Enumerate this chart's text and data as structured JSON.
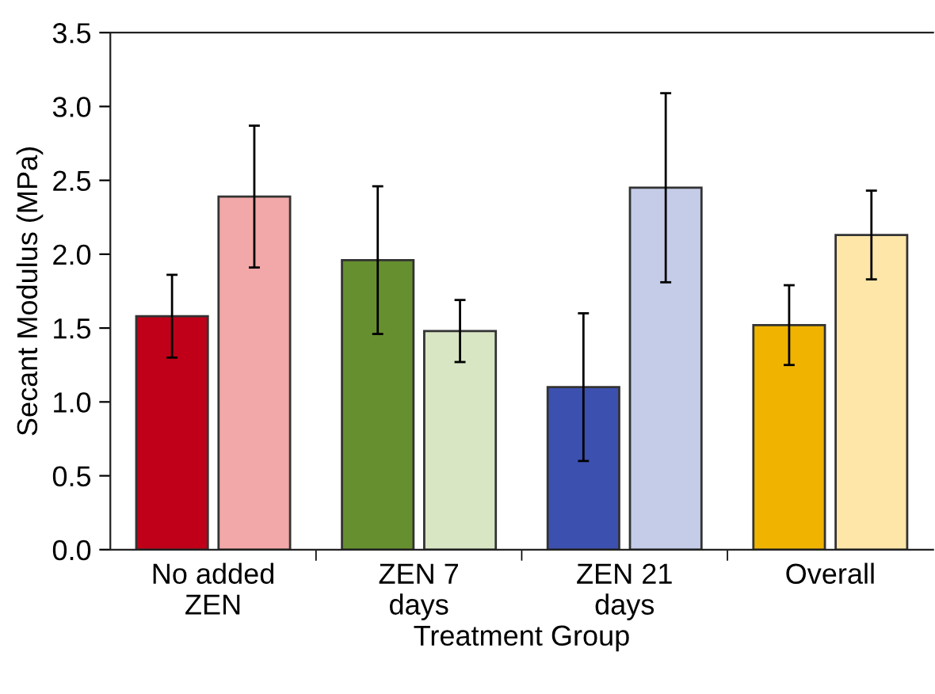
{
  "chart_data": {
    "type": "bar",
    "xlabel": "Treatment Group",
    "ylabel": "Secant Modulus (MPa)",
    "categories": [
      "No added\nZEN",
      "ZEN 7\ndays",
      "ZEN 21\ndays",
      "Overall"
    ],
    "series": [
      {
        "colors": [
          "#c00018",
          "#66902f",
          "#3c50b0",
          "#f0b400"
        ],
        "values": [
          1.58,
          1.96,
          1.1,
          1.52
        ],
        "errors": [
          0.28,
          0.5,
          0.5,
          0.27
        ]
      },
      {
        "colors": [
          "#f2a8a8",
          "#d8e6c4",
          "#c4cce8",
          "#fde6a8"
        ],
        "values": [
          2.39,
          1.48,
          2.45,
          2.13
        ],
        "errors": [
          0.48,
          0.21,
          0.64,
          0.3
        ]
      }
    ],
    "ylim": [
      0,
      3.5
    ],
    "yticks": [
      {
        "value": 0,
        "label": "0.0"
      },
      {
        "value": 0.5,
        "label": "0.5"
      },
      {
        "value": 1,
        "label": "1.0"
      },
      {
        "value": 1.5,
        "label": "1.5"
      },
      {
        "value": 2,
        "label": "2.0"
      },
      {
        "value": 2.5,
        "label": "2.5"
      },
      {
        "value": 3,
        "label": "3.0"
      },
      {
        "value": 3.5,
        "label": "3.5"
      }
    ],
    "grid": false
  }
}
